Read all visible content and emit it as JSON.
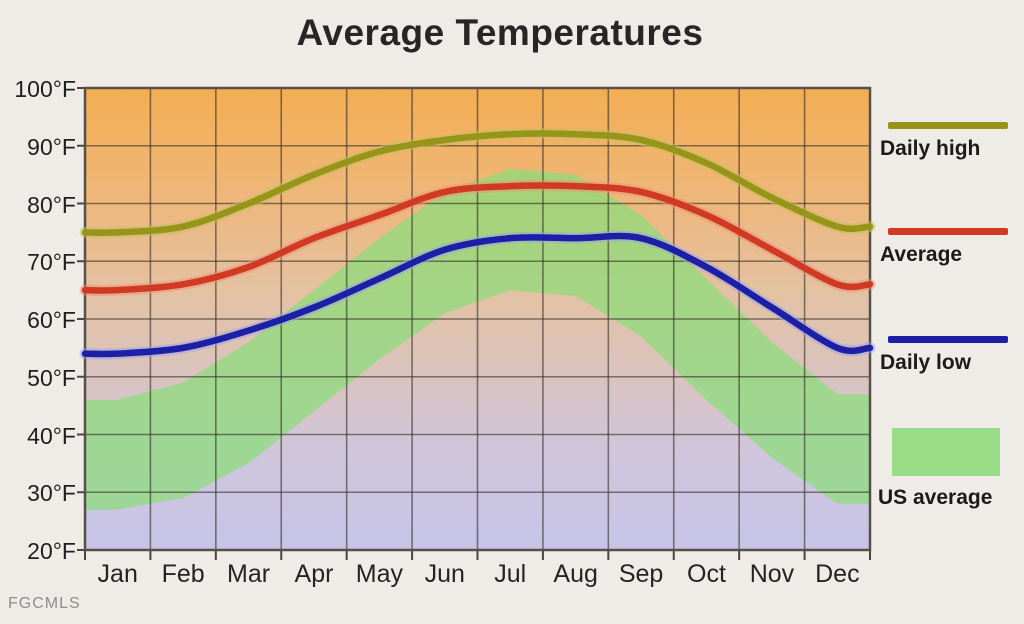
{
  "title": "Average Temperatures",
  "watermark": "FGCMLS",
  "legend": {
    "items": [
      {
        "label": "Daily high",
        "swatch": "line",
        "color": "#97941a"
      },
      {
        "label": "Average",
        "swatch": "line",
        "color": "#d03a22"
      },
      {
        "label": "Daily low",
        "swatch": "line",
        "color": "#1d20a6"
      },
      {
        "label": "US average",
        "swatch": "area",
        "color": "#9bdc88"
      }
    ]
  },
  "chart_data": {
    "type": "line",
    "title": "Average Temperatures",
    "categories": [
      "Jan",
      "Feb",
      "Mar",
      "Apr",
      "May",
      "Jun",
      "Jul",
      "Aug",
      "Sep",
      "Oct",
      "Nov",
      "Dec"
    ],
    "y_tick_labels": [
      "100°F",
      "90°F",
      "80°F",
      "70°F",
      "60°F",
      "50°F",
      "40°F",
      "30°F",
      "20°F"
    ],
    "ylim": [
      20,
      100
    ],
    "y_unit": "°F",
    "grid": true,
    "legend_position": "right",
    "background_gradient": [
      "#f3ae52",
      "#eeb77c",
      "#e3c2a4",
      "#d9c3c0",
      "#cfc6dc",
      "#c7c4e8"
    ],
    "series": [
      {
        "name": "Daily high",
        "color": "#97941a",
        "halo": "#c2bf5e",
        "values": [
          75,
          76,
          80,
          85,
          89,
          91,
          92,
          92,
          91,
          87,
          81,
          76
        ]
      },
      {
        "name": "Average",
        "color": "#d03a22",
        "halo": "#ec9077",
        "values": [
          65,
          66,
          69,
          74,
          78,
          82,
          83,
          83,
          82,
          78,
          72,
          66
        ]
      },
      {
        "name": "Daily low",
        "color": "#1d20a6",
        "halo": "#98a3e8",
        "values": [
          54,
          55,
          58,
          62,
          67,
          72,
          74,
          74,
          74,
          69,
          62,
          55
        ]
      }
    ],
    "band": {
      "name": "US average",
      "color": "#8bdc78",
      "opacity": 0.72,
      "high": [
        46,
        49,
        56,
        65,
        74,
        82,
        86,
        85,
        78,
        67,
        56,
        47
      ],
      "low": [
        27,
        29,
        35,
        44,
        53,
        61,
        65,
        64,
        57,
        46,
        36,
        28
      ]
    }
  }
}
